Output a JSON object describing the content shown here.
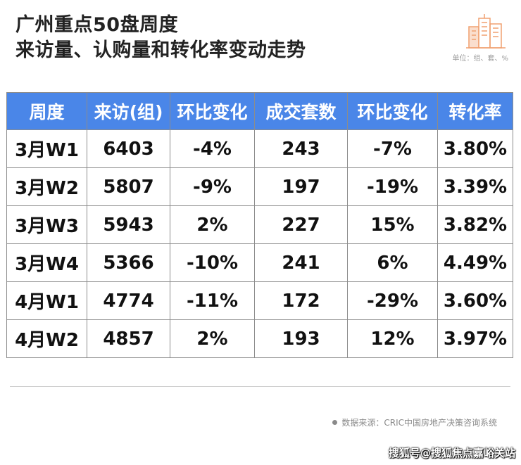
{
  "title": {
    "line1": "广州重点50盘周度",
    "line2": "来访量、认购量和转化率变动走势"
  },
  "unit": "单位：组、套、%",
  "table": {
    "headers": [
      "周度",
      "来访(组)",
      "环比变化",
      "成交套数",
      "环比变化",
      "转化率"
    ],
    "rows": [
      [
        "3月W1",
        "6403",
        "-4%",
        "243",
        "-7%",
        "3.80%"
      ],
      [
        "3月W2",
        "5807",
        "-9%",
        "197",
        "-19%",
        "3.39%"
      ],
      [
        "3月W3",
        "5943",
        "2%",
        "227",
        "15%",
        "3.82%"
      ],
      [
        "3月W4",
        "5366",
        "-10%",
        "241",
        "6%",
        "4.49%"
      ],
      [
        "4月W1",
        "4774",
        "-11%",
        "172",
        "-29%",
        "3.60%"
      ],
      [
        "4月W2",
        "4857",
        "2%",
        "193",
        "12%",
        "3.97%"
      ]
    ]
  },
  "source": "数据来源：CRIC中国房地产决策咨询系统",
  "watermark": "搜狐号@搜狐焦点嘉峪关站",
  "colors": {
    "header_bg": "#4a86e8",
    "negative": "#21a64a",
    "positive": "#e0242c",
    "logo": "#f0a070"
  },
  "icons": {
    "logo": "building-icon"
  }
}
